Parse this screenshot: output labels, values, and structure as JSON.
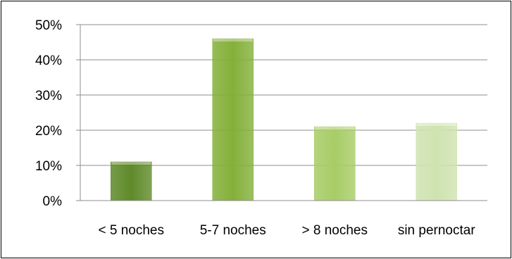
{
  "chart_data": {
    "type": "bar",
    "title": "",
    "xlabel": "",
    "ylabel": "",
    "categories": [
      "< 5 noches",
      "5-7 noches",
      "> 8 noches",
      "sin pernoctar"
    ],
    "values": [
      11,
      46,
      21,
      22
    ],
    "ylim": [
      0,
      50
    ],
    "yticks": [
      0,
      10,
      20,
      30,
      40,
      50
    ],
    "ytick_labels": [
      "0%",
      "10%",
      "20%",
      "30%",
      "40%",
      "50%"
    ],
    "grid": true,
    "legend": "none",
    "colors": [
      "#5f8a2a",
      "#84b03a",
      "#a8cc66",
      "#cfe3b0"
    ],
    "gridline_color": "#8c8c8c",
    "axis_color": "#000000"
  }
}
